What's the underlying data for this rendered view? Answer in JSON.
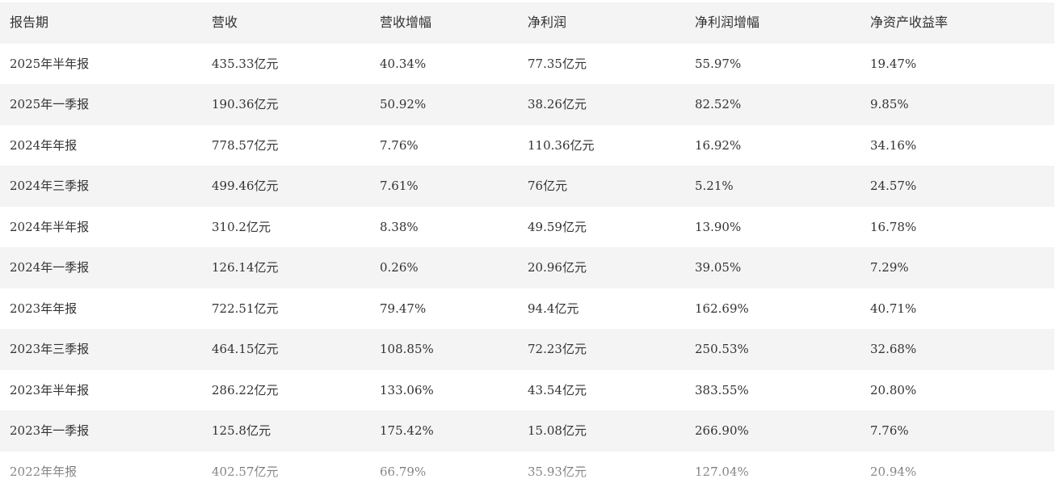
{
  "table": {
    "headers": [
      "报告期",
      "营收",
      "营收增幅",
      "净利润",
      "净利润增幅",
      "净资产收益率"
    ],
    "rows": [
      [
        "2025年半年报",
        "435.33亿元",
        "40.34%",
        "77.35亿元",
        "55.97%",
        "19.47%"
      ],
      [
        "2025年一季报",
        "190.36亿元",
        "50.92%",
        "38.26亿元",
        "82.52%",
        "9.85%"
      ],
      [
        "2024年年报",
        "778.57亿元",
        "7.76%",
        "110.36亿元",
        "16.92%",
        "34.16%"
      ],
      [
        "2024年三季报",
        "499.46亿元",
        "7.61%",
        "76亿元",
        "5.21%",
        "24.57%"
      ],
      [
        "2024年半年报",
        "310.2亿元",
        "8.38%",
        "49.59亿元",
        "13.90%",
        "16.78%"
      ],
      [
        "2024年一季报",
        "126.14亿元",
        "0.26%",
        "20.96亿元",
        "39.05%",
        "7.29%"
      ],
      [
        "2023年年报",
        "722.51亿元",
        "79.47%",
        "94.4亿元",
        "162.69%",
        "40.71%"
      ],
      [
        "2023年三季报",
        "464.15亿元",
        "108.85%",
        "72.23亿元",
        "250.53%",
        "32.68%"
      ],
      [
        "2023年半年报",
        "286.22亿元",
        "133.06%",
        "43.54亿元",
        "383.55%",
        "20.80%"
      ],
      [
        "2023年一季报",
        "125.8亿元",
        "175.42%",
        "15.08亿元",
        "266.90%",
        "7.76%"
      ],
      [
        "2022年年报",
        "402.57亿元",
        "66.79%",
        "35.93亿元",
        "127.04%",
        "20.94%"
      ]
    ]
  },
  "colors": {
    "header_bg": "#f4f4f4",
    "stripe_bg": "#f4f4f4",
    "text": "#333333"
  }
}
